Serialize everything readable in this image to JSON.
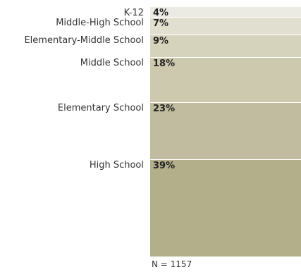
{
  "chart_data": {
    "type": "bar",
    "stacked": true,
    "orientation": "vertical-stack",
    "categories": [
      "K-12",
      "Middle-High School",
      "Elementary-Middle School",
      "Middle School",
      "Elementary School",
      "High School"
    ],
    "values": [
      4,
      7,
      9,
      18,
      23,
      39
    ],
    "value_labels": [
      "4%",
      "7%",
      "9%",
      "18%",
      "23%",
      "39%"
    ],
    "unit": "%",
    "colors": [
      "#ecebe3",
      "#e1dfd0",
      "#d6d3bd",
      "#cdc9af",
      "#c1bc9f",
      "#b4af8b"
    ],
    "note": "N = 1157",
    "title": "",
    "xlabel": "",
    "ylabel": ""
  }
}
